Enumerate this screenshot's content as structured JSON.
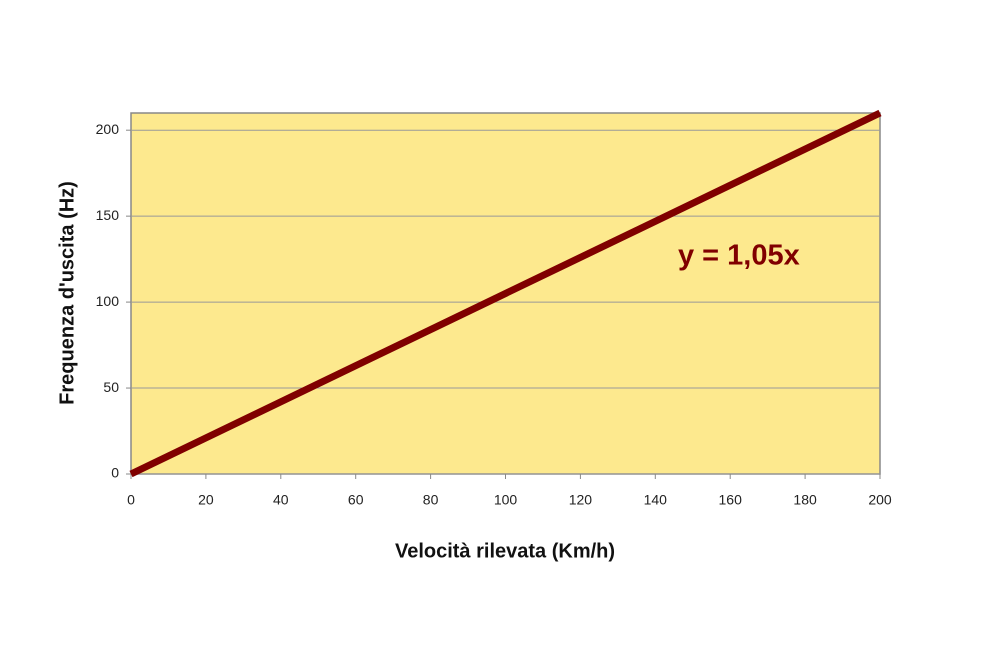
{
  "chart_data": {
    "type": "line",
    "x_label": "Velocità rilevata (Km/h)",
    "y_label": "Frequenza d'uscita (Hz)",
    "annotation": "y = 1,05x",
    "x": [
      0,
      200
    ],
    "series": [
      {
        "name": "y = 1,05x",
        "color": "#800000",
        "values": [
          0,
          210
        ]
      }
    ],
    "xlim": [
      0,
      200
    ],
    "xticks": [
      0,
      20,
      40,
      60,
      80,
      100,
      120,
      140,
      160,
      180,
      200
    ],
    "ylim": [
      0,
      210
    ],
    "yticks": [
      0,
      50,
      100,
      150,
      200
    ],
    "grid": true,
    "legend": false,
    "plot_background": "#fde98e"
  }
}
